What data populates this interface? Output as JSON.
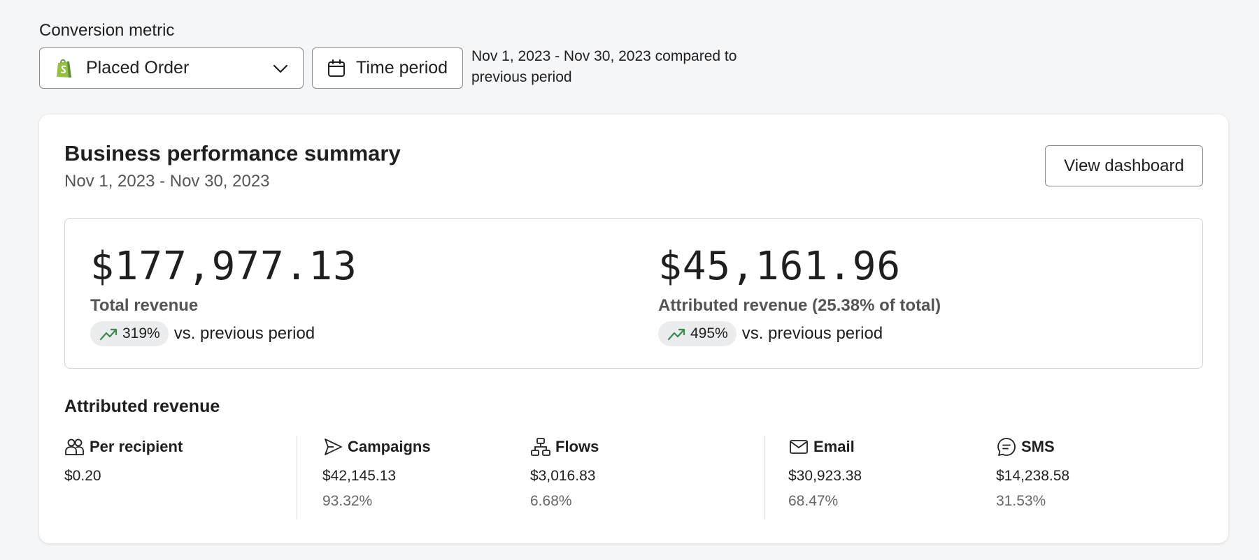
{
  "conversion_metric": {
    "label": "Conversion metric",
    "selected": "Placed Order",
    "icon": "shopify-icon"
  },
  "time_period": {
    "button_label": "Time period",
    "description": "Nov 1, 2023 - Nov 30, 2023 compared to previous period"
  },
  "summary": {
    "title": "Business performance summary",
    "date_range": "Nov 1, 2023 - Nov 30, 2023",
    "view_button": "View dashboard",
    "total": {
      "value": "$177,977.13",
      "label": "Total revenue",
      "delta": "319%",
      "delta_suffix": "vs. previous period"
    },
    "attributed": {
      "value": "$45,161.96",
      "label": "Attributed revenue (25.38% of total)",
      "delta": "495%",
      "delta_suffix": "vs. previous period"
    }
  },
  "attributed_revenue": {
    "heading": "Attributed revenue",
    "columns": [
      {
        "label": "Per recipient",
        "icon": "people-icon",
        "value": "$0.20",
        "pct": ""
      },
      {
        "label": "Campaigns",
        "icon": "send-icon",
        "value": "$42,145.13",
        "pct": "93.32%"
      },
      {
        "label": "Flows",
        "icon": "flow-icon",
        "value": "$3,016.83",
        "pct": "6.68%"
      },
      {
        "label": "Email",
        "icon": "email-icon",
        "value": "$30,923.38",
        "pct": "68.47%"
      },
      {
        "label": "SMS",
        "icon": "sms-icon",
        "value": "$14,238.58",
        "pct": "31.53%"
      }
    ]
  },
  "colors": {
    "trend_green": "#3a8a4f",
    "shopify_green": "#95bf47"
  }
}
